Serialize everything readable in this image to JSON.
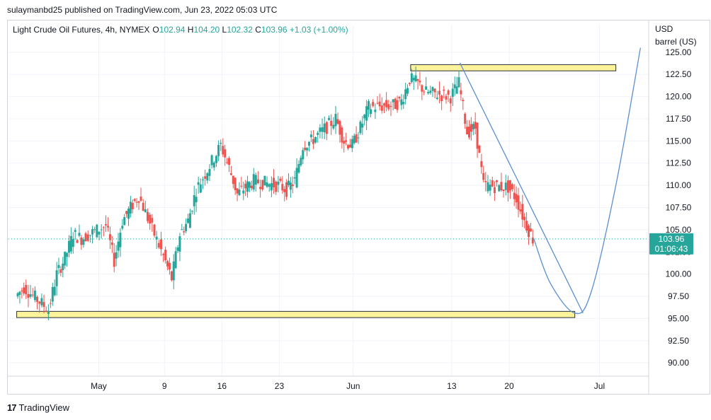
{
  "published_line": "sulaymanbd25 published on TradingView.com, Jun 23, 2022 05:03 UTC",
  "footer": {
    "logo_glyph": "17",
    "brand": "TradingView"
  },
  "colors": {
    "up": "#26a69a",
    "down": "#ef5350",
    "trendline": "#5b8fd0",
    "zone_fill": "#fdf39b",
    "zone_stroke": "#2a2e39",
    "price_tag": "#26a69a",
    "axis_text": "#131722",
    "grid": "#f0f3fa",
    "legend_value": "#26a69a",
    "price_line": "#26a69a"
  },
  "chart_data": {
    "type": "candlestick",
    "symbol_header": {
      "name": "Light Crude Oil Futures, 4h, NYMEX",
      "O_label": "O",
      "O": "102.94",
      "H_label": "H",
      "H": "104.20",
      "L_label": "L",
      "L": "102.32",
      "C_label": "C",
      "C": "103.96",
      "change": "+1.03 (+1.00%)"
    },
    "y_axis": {
      "unit_line1": "USD",
      "unit_line2": "barrel (US)",
      "min": 88.5,
      "max": 126.5,
      "ticks": [
        "90.00",
        "92.50",
        "95.00",
        "97.50",
        "100.00",
        "102.50",
        "105.00",
        "107.50",
        "110.00",
        "112.50",
        "115.00",
        "117.50",
        "120.00",
        "122.50",
        "125.00"
      ]
    },
    "x_axis": {
      "start": "2022-04-20",
      "end": "2022-07-07",
      "ticks": [
        {
          "date": "2022-05-01",
          "label": "May"
        },
        {
          "date": "2022-05-09",
          "label": "9"
        },
        {
          "date": "2022-05-16",
          "label": "16"
        },
        {
          "date": "2022-05-23",
          "label": "23"
        },
        {
          "date": "2022-06-01",
          "label": "Jun"
        },
        {
          "date": "2022-06-13",
          "label": "13"
        },
        {
          "date": "2022-06-20",
          "label": "20"
        },
        {
          "date": "2022-07-01",
          "label": "Jul"
        }
      ]
    },
    "last_price": {
      "value": 103.96,
      "label": "103.96",
      "countdown": "01:06:43"
    },
    "zones": [
      {
        "name": "resistance",
        "from": "2022-06-08",
        "to": "2022-07-03",
        "low": 122.9,
        "high": 123.6
      },
      {
        "name": "support",
        "from": "2022-04-21",
        "to": "2022-06-28",
        "low": 95.1,
        "high": 95.8
      }
    ],
    "trendlines": [
      {
        "name": "down-trendline",
        "from": {
          "date": "2022-06-14",
          "value": 123.8
        },
        "to": {
          "date": "2022-06-29",
          "value": 95.6
        }
      }
    ],
    "projection_curve": {
      "name": "projected-path",
      "points": [
        {
          "date": "2022-06-23",
          "value": 104.0
        },
        {
          "date": "2022-06-25",
          "value": 99.0
        },
        {
          "date": "2022-06-28",
          "value": 95.6
        },
        {
          "date": "2022-06-30",
          "value": 98.0
        },
        {
          "date": "2022-07-03",
          "value": 110.0
        },
        {
          "date": "2022-07-06",
          "value": 125.5
        }
      ]
    },
    "series": [
      {
        "close": [
          "2022-04-21:97.5",
          "2022-04-22:98.5",
          "2022-04-25:96.0",
          "2022-04-26:100.0",
          "2022-04-27:101.8",
          "2022-04-28:104.5",
          "2022-04-29:104.0",
          "2022-05-02:105.5",
          "2022-05-03:101.5",
          "2022-05-04:106.0",
          "2022-05-05:107.5",
          "2022-05-06:108.8",
          "2022-05-09:102.0",
          "2022-05-10:99.5",
          "2022-05-11:104.5",
          "2022-05-12:106.0",
          "2022-05-13:109.5",
          "2022-05-16:114.5",
          "2022-05-17:112.0",
          "2022-05-18:109.0",
          "2022-05-19:109.8",
          "2022-05-20:110.5",
          "2022-05-23:110.0",
          "2022-05-24:109.5",
          "2022-05-25:110.5",
          "2022-05-26:114.5",
          "2022-05-27:115.0",
          "2022-05-30:117.5",
          "2022-05-31:115.0",
          "2022-06-01:114.5",
          "2022-06-02:116.5",
          "2022-06-03:118.8",
          "2022-06-06:119.0",
          "2022-06-07:119.5",
          "2022-06-08:122.0",
          "2022-06-09:121.5",
          "2022-06-10:120.5",
          "2022-06-13:120.0",
          "2022-06-14:121.5",
          "2022-06-15:116.0",
          "2022-06-16:116.5",
          "2022-06-17:110.0",
          "2022-06-20:109.8",
          "2022-06-21:108.5",
          "2022-06-22:106.0",
          "2022-06-23:103.96"
        ]
      }
    ]
  }
}
